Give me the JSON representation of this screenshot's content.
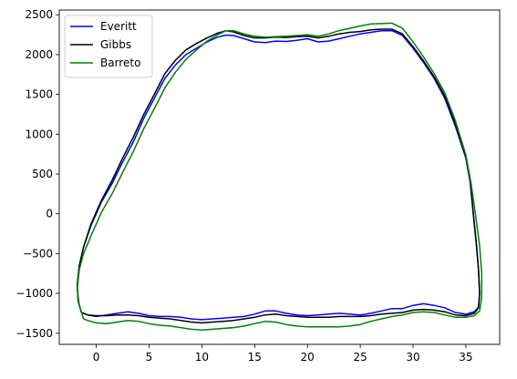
{
  "chart_data": {
    "type": "line",
    "title": "",
    "xlabel": "",
    "ylabel": "",
    "xlim": [
      -3.5,
      38.2
    ],
    "ylim": [
      -1640,
      2560
    ],
    "xticks": [
      0,
      5,
      10,
      15,
      20,
      25,
      30,
      35
    ],
    "yticks": [
      -1500,
      -1000,
      -500,
      0,
      500,
      1000,
      1500,
      2000,
      2500
    ],
    "grid": false,
    "legend_position": "top-left",
    "series": [
      {
        "name": "Everitt",
        "color": "#0000ff",
        "points": [
          [
            -1.4,
            -1240
          ],
          [
            -1.7,
            -1100
          ],
          [
            -1.8,
            -900
          ],
          [
            -1.6,
            -650
          ],
          [
            -1.2,
            -420
          ],
          [
            -0.5,
            -150
          ],
          [
            0.5,
            150
          ],
          [
            1.5,
            380
          ],
          [
            2.5,
            650
          ],
          [
            3.5,
            900
          ],
          [
            4.5,
            1200
          ],
          [
            5.5,
            1450
          ],
          [
            6.5,
            1700
          ],
          [
            7.5,
            1870
          ],
          [
            8.5,
            2000
          ],
          [
            9.5,
            2080
          ],
          [
            10.5,
            2160
          ],
          [
            11.5,
            2220
          ],
          [
            12.3,
            2245
          ],
          [
            13,
            2240
          ],
          [
            14,
            2200
          ],
          [
            15,
            2160
          ],
          [
            16,
            2150
          ],
          [
            17,
            2170
          ],
          [
            18,
            2165
          ],
          [
            19,
            2180
          ],
          [
            20,
            2200
          ],
          [
            21,
            2160
          ],
          [
            22,
            2170
          ],
          [
            23,
            2200
          ],
          [
            24,
            2230
          ],
          [
            25,
            2260
          ],
          [
            26,
            2280
          ],
          [
            27,
            2300
          ],
          [
            28,
            2300
          ],
          [
            29,
            2240
          ],
          [
            30,
            2080
          ],
          [
            31,
            1900
          ],
          [
            32,
            1700
          ],
          [
            33,
            1450
          ],
          [
            34,
            1100
          ],
          [
            35,
            700
          ],
          [
            35.4,
            400
          ],
          [
            35.7,
            0
          ],
          [
            36,
            -400
          ],
          [
            36.2,
            -700
          ],
          [
            36.3,
            -1000
          ],
          [
            36.2,
            -1170
          ],
          [
            35.8,
            -1230
          ],
          [
            35,
            -1260
          ],
          [
            34,
            -1240
          ],
          [
            33,
            -1180
          ],
          [
            32,
            -1150
          ],
          [
            31,
            -1130
          ],
          [
            30,
            -1150
          ],
          [
            29,
            -1190
          ],
          [
            28,
            -1190
          ],
          [
            27,
            -1220
          ],
          [
            26,
            -1250
          ],
          [
            25,
            -1270
          ],
          [
            24,
            -1260
          ],
          [
            23,
            -1250
          ],
          [
            22,
            -1260
          ],
          [
            21,
            -1270
          ],
          [
            20,
            -1280
          ],
          [
            19,
            -1270
          ],
          [
            18,
            -1250
          ],
          [
            17,
            -1220
          ],
          [
            16,
            -1220
          ],
          [
            15,
            -1260
          ],
          [
            14,
            -1290
          ],
          [
            13,
            -1300
          ],
          [
            12,
            -1310
          ],
          [
            11,
            -1320
          ],
          [
            10,
            -1330
          ],
          [
            9,
            -1320
          ],
          [
            8,
            -1300
          ],
          [
            7,
            -1290
          ],
          [
            6,
            -1290
          ],
          [
            5,
            -1280
          ],
          [
            4,
            -1250
          ],
          [
            3,
            -1230
          ],
          [
            2,
            -1250
          ],
          [
            1,
            -1270
          ],
          [
            0,
            -1290
          ],
          [
            -0.8,
            -1270
          ],
          [
            -1.4,
            -1240
          ]
        ]
      },
      {
        "name": "Gibbs",
        "color": "#000000",
        "points": [
          [
            -1.4,
            -1240
          ],
          [
            -1.7,
            -1100
          ],
          [
            -1.8,
            -900
          ],
          [
            -1.6,
            -650
          ],
          [
            -1.2,
            -420
          ],
          [
            -0.5,
            -130
          ],
          [
            0.5,
            170
          ],
          [
            1.5,
            420
          ],
          [
            2.5,
            700
          ],
          [
            3.5,
            960
          ],
          [
            4.5,
            1250
          ],
          [
            5.5,
            1500
          ],
          [
            6.5,
            1760
          ],
          [
            7.5,
            1930
          ],
          [
            8.5,
            2060
          ],
          [
            9.5,
            2140
          ],
          [
            10.5,
            2210
          ],
          [
            11.5,
            2270
          ],
          [
            12.3,
            2300
          ],
          [
            13,
            2285
          ],
          [
            14,
            2240
          ],
          [
            15,
            2210
          ],
          [
            16,
            2210
          ],
          [
            17,
            2220
          ],
          [
            18,
            2215
          ],
          [
            19,
            2225
          ],
          [
            20,
            2230
          ],
          [
            21,
            2210
          ],
          [
            22,
            2230
          ],
          [
            23,
            2260
          ],
          [
            24,
            2280
          ],
          [
            25,
            2290
          ],
          [
            26,
            2310
          ],
          [
            27,
            2320
          ],
          [
            28,
            2320
          ],
          [
            29,
            2260
          ],
          [
            30,
            2100
          ],
          [
            31,
            1920
          ],
          [
            32,
            1720
          ],
          [
            33,
            1480
          ],
          [
            34,
            1130
          ],
          [
            35,
            720
          ],
          [
            35.4,
            420
          ],
          [
            35.7,
            20
          ],
          [
            36,
            -380
          ],
          [
            36.2,
            -700
          ],
          [
            36.3,
            -1000
          ],
          [
            36.2,
            -1180
          ],
          [
            35.8,
            -1250
          ],
          [
            35,
            -1280
          ],
          [
            34,
            -1270
          ],
          [
            33,
            -1230
          ],
          [
            32,
            -1210
          ],
          [
            31,
            -1200
          ],
          [
            30,
            -1210
          ],
          [
            29,
            -1240
          ],
          [
            28,
            -1250
          ],
          [
            27,
            -1260
          ],
          [
            26,
            -1280
          ],
          [
            25,
            -1290
          ],
          [
            24,
            -1290
          ],
          [
            23,
            -1290
          ],
          [
            22,
            -1300
          ],
          [
            21,
            -1300
          ],
          [
            20,
            -1300
          ],
          [
            19,
            -1290
          ],
          [
            18,
            -1280
          ],
          [
            17,
            -1260
          ],
          [
            16,
            -1270
          ],
          [
            15,
            -1300
          ],
          [
            14,
            -1320
          ],
          [
            13,
            -1340
          ],
          [
            12,
            -1350
          ],
          [
            11,
            -1360
          ],
          [
            10,
            -1370
          ],
          [
            9,
            -1360
          ],
          [
            8,
            -1340
          ],
          [
            7,
            -1320
          ],
          [
            6,
            -1310
          ],
          [
            5,
            -1300
          ],
          [
            4,
            -1280
          ],
          [
            3,
            -1270
          ],
          [
            2,
            -1270
          ],
          [
            1,
            -1280
          ],
          [
            0,
            -1280
          ],
          [
            -0.8,
            -1270
          ],
          [
            -1.4,
            -1240
          ]
        ]
      },
      {
        "name": "Barreto",
        "color": "#008000",
        "points": [
          [
            -1.2,
            -1320
          ],
          [
            -1.6,
            -1150
          ],
          [
            -1.8,
            -950
          ],
          [
            -1.6,
            -700
          ],
          [
            -1.2,
            -500
          ],
          [
            -0.5,
            -280
          ],
          [
            0.5,
            20
          ],
          [
            1.5,
            250
          ],
          [
            2.5,
            520
          ],
          [
            3.5,
            780
          ],
          [
            4.5,
            1070
          ],
          [
            5.5,
            1320
          ],
          [
            6.5,
            1580
          ],
          [
            7.5,
            1780
          ],
          [
            8.5,
            1940
          ],
          [
            9.5,
            2060
          ],
          [
            10.5,
            2170
          ],
          [
            11.5,
            2250
          ],
          [
            12.3,
            2300
          ],
          [
            13,
            2300
          ],
          [
            14,
            2260
          ],
          [
            15,
            2230
          ],
          [
            16,
            2220
          ],
          [
            17,
            2225
          ],
          [
            18,
            2230
          ],
          [
            19,
            2240
          ],
          [
            20,
            2250
          ],
          [
            21,
            2230
          ],
          [
            22,
            2260
          ],
          [
            23,
            2300
          ],
          [
            24,
            2330
          ],
          [
            25,
            2360
          ],
          [
            26,
            2385
          ],
          [
            27,
            2390
          ],
          [
            28,
            2395
          ],
          [
            29,
            2330
          ],
          [
            30,
            2160
          ],
          [
            31,
            1970
          ],
          [
            32,
            1760
          ],
          [
            33,
            1520
          ],
          [
            34,
            1170
          ],
          [
            35,
            740
          ],
          [
            35.5,
            380
          ],
          [
            35.9,
            0
          ],
          [
            36.3,
            -400
          ],
          [
            36.5,
            -750
          ],
          [
            36.5,
            -1050
          ],
          [
            36.3,
            -1220
          ],
          [
            35.8,
            -1280
          ],
          [
            35,
            -1300
          ],
          [
            34,
            -1300
          ],
          [
            33,
            -1270
          ],
          [
            32,
            -1240
          ],
          [
            31,
            -1230
          ],
          [
            30,
            -1240
          ],
          [
            29,
            -1270
          ],
          [
            28,
            -1290
          ],
          [
            27,
            -1320
          ],
          [
            26,
            -1350
          ],
          [
            25,
            -1390
          ],
          [
            24,
            -1410
          ],
          [
            23,
            -1420
          ],
          [
            22,
            -1420
          ],
          [
            21,
            -1420
          ],
          [
            20,
            -1420
          ],
          [
            19,
            -1410
          ],
          [
            18,
            -1390
          ],
          [
            17,
            -1360
          ],
          [
            16,
            -1350
          ],
          [
            15,
            -1380
          ],
          [
            14,
            -1410
          ],
          [
            13,
            -1430
          ],
          [
            12,
            -1440
          ],
          [
            11,
            -1450
          ],
          [
            10,
            -1460
          ],
          [
            9,
            -1450
          ],
          [
            8,
            -1430
          ],
          [
            7,
            -1410
          ],
          [
            6,
            -1400
          ],
          [
            5,
            -1380
          ],
          [
            4,
            -1350
          ],
          [
            3,
            -1340
          ],
          [
            2,
            -1360
          ],
          [
            1,
            -1380
          ],
          [
            0,
            -1370
          ],
          [
            -0.8,
            -1340
          ],
          [
            -1.2,
            -1320
          ]
        ]
      }
    ]
  }
}
